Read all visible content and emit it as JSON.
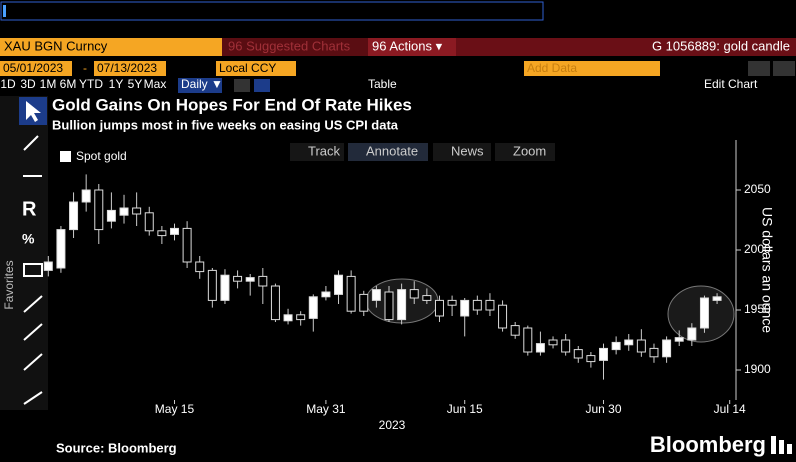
{
  "ui": {
    "command": "XAU BGN Curncy",
    "suggested": "96 Suggested Charts",
    "actions": "96 Actions ▾",
    "ticket": "G 1056889: gold candle",
    "start": "05/01/2023",
    "sep": "-",
    "end": "07/13/2023",
    "ccy": "Local CCY",
    "add_data": "Add Data",
    "periods": [
      "1D",
      "3D",
      "1M",
      "6M",
      "YTD",
      "1Y",
      "5Y",
      "Max"
    ],
    "frequency": "Daily ▼",
    "table": "Table",
    "edit": "Edit Chart",
    "tools": [
      "Track",
      "Annotate",
      "News",
      "Zoom"
    ],
    "favorites": "Favorites"
  },
  "chart_data": {
    "type": "candlestick",
    "title": "Gold Gains On Hopes For End Of Rate Hikes",
    "subtitle": "Bullion jumps most in five weeks on easing US CPI data",
    "y_label": "US dollars an ounce",
    "x_label": "2023",
    "source": "Source: Bloomberg",
    "brand": "Bloomberg",
    "up_color": "#ffffff",
    "down_color": "#000000",
    "series": [
      {
        "name": "Spot gold",
        "open": [
          1983,
          1985,
          2017,
          2040,
          2050,
          2024,
          2029,
          2035,
          2031,
          2016,
          2013,
          2018,
          1990,
          1983,
          1958,
          1978,
          1974,
          1978,
          1970,
          1941,
          1946,
          1943,
          1961,
          1963,
          1978,
          1963,
          1958,
          1965,
          1942,
          1967,
          1962,
          1958,
          1958,
          1945,
          1958,
          1958,
          1954,
          1937,
          1935,
          1915,
          1925,
          1925,
          1917,
          1912,
          1908,
          1917,
          1921,
          1925,
          1918,
          1911,
          1924,
          1925,
          1935,
          1958
        ],
        "high": [
          1995,
          2020,
          2048,
          2063,
          2055,
          2048,
          2046,
          2048,
          2036,
          2020,
          2022,
          2024,
          1995,
          1985,
          1984,
          1983,
          1980,
          1985,
          1972,
          1951,
          1949,
          1963,
          1970,
          1983,
          1983,
          1966,
          1970,
          1970,
          1972,
          1974,
          1968,
          1962,
          1962,
          1960,
          1962,
          1964,
          1958,
          1940,
          1937,
          1932,
          1928,
          1930,
          1920,
          1915,
          1922,
          1928,
          1930,
          1934,
          1922,
          1928,
          1933,
          1939,
          1962,
          1964
        ],
        "low": [
          1978,
          1981,
          2010,
          2032,
          2005,
          2018,
          2022,
          2020,
          2012,
          2005,
          2008,
          1985,
          1976,
          1952,
          1955,
          1968,
          1962,
          1955,
          1940,
          1938,
          1937,
          1932,
          1958,
          1955,
          1947,
          1945,
          1952,
          1940,
          1938,
          1955,
          1955,
          1940,
          1945,
          1928,
          1946,
          1945,
          1932,
          1926,
          1912,
          1912,
          1918,
          1912,
          1906,
          1902,
          1892,
          1913,
          1916,
          1911,
          1906,
          1906,
          1920,
          1920,
          1931,
          1955
        ],
        "close": [
          1990,
          2017,
          2040,
          2050,
          2017,
          2033,
          2035,
          2030,
          2016,
          2012,
          2018,
          1990,
          1982,
          1958,
          1979,
          1974,
          1977,
          1970,
          1942,
          1946,
          1942,
          1961,
          1965,
          1979,
          1949,
          1949,
          1967,
          1942,
          1967,
          1960,
          1958,
          1945,
          1954,
          1958,
          1950,
          1950,
          1935,
          1929,
          1915,
          1922,
          1921,
          1915,
          1910,
          1907,
          1918,
          1923,
          1925,
          1915,
          1911,
          1925,
          1927,
          1935,
          1960,
          1961
        ]
      }
    ],
    "ylim": [
      1875,
      2090
    ],
    "yticks": [
      1900,
      1950,
      2000,
      2050
    ],
    "xlim": [
      -0.5,
      54.5
    ],
    "xticks": [
      {
        "value": 10,
        "label": "May 15"
      },
      {
        "value": 22,
        "label": "May 31"
      },
      {
        "value": 33,
        "label": "Jun 15"
      },
      {
        "value": 44,
        "label": "Jun 30"
      },
      {
        "value": 54,
        "label": "Jul 14"
      }
    ]
  }
}
